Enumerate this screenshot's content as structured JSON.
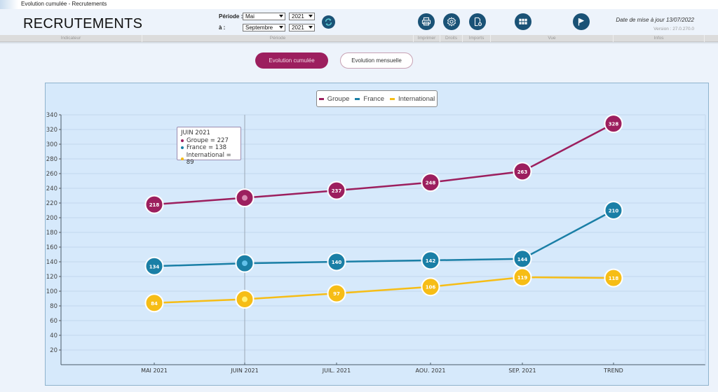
{
  "window": {
    "title": "Evolution cumulée - Recrutements"
  },
  "header": {
    "app_title": "RECRUTEMENTS",
    "period": {
      "from_label": "Période :",
      "to_label": "à :",
      "from_month": "Mai",
      "from_year": "2021",
      "to_month": "Septembre",
      "to_year": "2021"
    },
    "buttons": [
      {
        "name": "refresh",
        "icon": "refresh-icon"
      },
      {
        "name": "print",
        "icon": "printer-icon"
      },
      {
        "name": "rights",
        "icon": "gear-icon"
      },
      {
        "name": "imports",
        "icon": "document-import-icon"
      },
      {
        "name": "view",
        "icon": "grid-icon"
      },
      {
        "name": "flag",
        "icon": "flag-icon"
      }
    ],
    "update_date": "Date de mise à jour 13/07/2022",
    "version": "Version : 27.0.270.0",
    "sections": [
      "Indicateur",
      "Période",
      "Imprimer",
      "Droits",
      "Imports",
      "Vue",
      "Infos"
    ]
  },
  "view_toggle": {
    "active": "Evolution cumulée",
    "inactive": "Evolution mensuelle"
  },
  "tooltip": {
    "title": "JUIN 2021",
    "lines": [
      "Groupe = 227",
      "France = 138",
      "International = 89"
    ]
  },
  "colors": {
    "groupe": "#9c1f5e",
    "france": "#1a7fa6",
    "international": "#f6bd16",
    "accent": "#1a5276"
  },
  "chart_data": {
    "type": "line",
    "title": "",
    "xlabel": "",
    "ylabel": "",
    "categories": [
      "MAI 2021",
      "JUIN 2021",
      "JUIL. 2021",
      "AOU. 2021",
      "SEP. 2021",
      "TREND"
    ],
    "series": [
      {
        "name": "Groupe",
        "values": [
          218,
          227,
          237,
          248,
          263,
          328
        ]
      },
      {
        "name": "France",
        "values": [
          134,
          138,
          140,
          142,
          144,
          210
        ]
      },
      {
        "name": "International",
        "values": [
          84,
          89,
          97,
          106,
          119,
          118
        ]
      }
    ],
    "ylim": [
      0,
      340
    ],
    "yticks": [
      20,
      40,
      60,
      80,
      100,
      120,
      140,
      160,
      180,
      200,
      220,
      240,
      260,
      280,
      300,
      320,
      340
    ],
    "grid": true,
    "legend": "top-center",
    "highlighted_category": "JUIN 2021"
  }
}
